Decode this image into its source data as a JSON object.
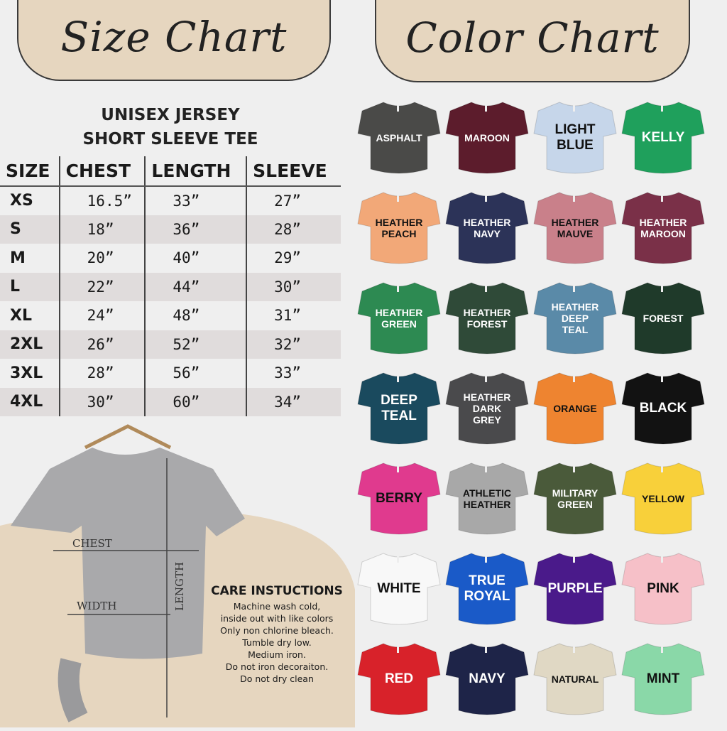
{
  "size_chart": {
    "title": "Size Chart",
    "subtitle_line1": "UNISEX JERSEY",
    "subtitle_line2": "SHORT SLEEVE TEE",
    "headers": [
      "SIZE",
      "CHEST",
      "LENGTH",
      "SLEEVE"
    ],
    "rows": [
      [
        "XS",
        "16.5”",
        "33”",
        "27”"
      ],
      [
        "S",
        "18”",
        "36”",
        "28”"
      ],
      [
        "M",
        "20”",
        "40”",
        "29”"
      ],
      [
        "L",
        "22”",
        "44”",
        "30”"
      ],
      [
        "XL",
        "24”",
        "48”",
        "31”"
      ],
      [
        "2XL",
        "26”",
        "52”",
        "32”"
      ],
      [
        "3XL",
        "28”",
        "56”",
        "33”"
      ],
      [
        "4XL",
        "30”",
        "60”",
        "34”"
      ]
    ]
  },
  "diagram": {
    "chest": "CHEST",
    "width": "WIDTH",
    "length": "LENGTH"
  },
  "care": {
    "title": "CARE INSTUCTIONS",
    "lines": [
      "Machine wash cold,",
      "inside out with like colors",
      "Only non chlorine bleach.",
      "Tumble dry low.",
      "Medium iron.",
      "Do not iron decoraiton.",
      "Do not dry clean"
    ]
  },
  "color_chart": {
    "title": "Color Chart",
    "colors": [
      {
        "label": "ASPHALT",
        "hex": "#4a4a48",
        "text": "#ffffff",
        "big": false
      },
      {
        "label": "MAROON",
        "hex": "#5c1c2c",
        "text": "#ffffff",
        "big": false
      },
      {
        "label": "LIGHT\nBLUE",
        "hex": "#c6d6ea",
        "text": "#111111",
        "big": true
      },
      {
        "label": "KELLY",
        "hex": "#1fa05c",
        "text": "#ffffff",
        "big": true
      },
      {
        "label": "HEATHER\nPEACH",
        "hex": "#f2a878",
        "text": "#111111",
        "big": false
      },
      {
        "label": "HEATHER\nNAVY",
        "hex": "#2c3358",
        "text": "#ffffff",
        "big": false
      },
      {
        "label": "HEATHER\nMAUVE",
        "hex": "#c9808a",
        "text": "#111111",
        "big": false
      },
      {
        "label": "HEATHER\nMAROON",
        "hex": "#7a3048",
        "text": "#ffffff",
        "big": false
      },
      {
        "label": "HEATHER\nGREEN",
        "hex": "#2d8a52",
        "text": "#ffffff",
        "big": false
      },
      {
        "label": "HEATHER\nFOREST",
        "hex": "#2f4a38",
        "text": "#ffffff",
        "big": false
      },
      {
        "label": "HEATHER\nDEEP\nTEAL",
        "hex": "#5a8aa8",
        "text": "#ffffff",
        "big": false
      },
      {
        "label": "FOREST",
        "hex": "#1f3a2a",
        "text": "#ffffff",
        "big": false
      },
      {
        "label": "DEEP\nTEAL",
        "hex": "#1a4a5e",
        "text": "#ffffff",
        "big": true
      },
      {
        "label": "HEATHER\nDARK\nGREY",
        "hex": "#4a4a4c",
        "text": "#ffffff",
        "big": false
      },
      {
        "label": "ORANGE",
        "hex": "#ee8430",
        "text": "#111111",
        "big": false
      },
      {
        "label": "BLACK",
        "hex": "#121212",
        "text": "#ffffff",
        "big": true
      },
      {
        "label": "BERRY",
        "hex": "#e03a8e",
        "text": "#111111",
        "big": true
      },
      {
        "label": "ATHLETIC\nHEATHER",
        "hex": "#a8a8a8",
        "text": "#111111",
        "big": false
      },
      {
        "label": "MILITARY\nGREEN",
        "hex": "#4a5a3a",
        "text": "#ffffff",
        "big": false
      },
      {
        "label": "YELLOW",
        "hex": "#f8d03a",
        "text": "#111111",
        "big": false
      },
      {
        "label": "WHITE",
        "hex": "#f8f8f8",
        "text": "#111111",
        "big": true
      },
      {
        "label": "TRUE\nROYAL",
        "hex": "#1a5ac8",
        "text": "#ffffff",
        "big": true
      },
      {
        "label": "PURPLE",
        "hex": "#4a1a8a",
        "text": "#ffffff",
        "big": true
      },
      {
        "label": "PINK",
        "hex": "#f6c0c8",
        "text": "#111111",
        "big": true
      },
      {
        "label": "RED",
        "hex": "#d8222a",
        "text": "#ffffff",
        "big": true
      },
      {
        "label": "NAVY",
        "hex": "#1e2448",
        "text": "#ffffff",
        "big": true
      },
      {
        "label": "NATURAL",
        "hex": "#e0d8c4",
        "text": "#111111",
        "big": false
      },
      {
        "label": "MINT",
        "hex": "#8ad8a8",
        "text": "#111111",
        "big": true
      }
    ]
  }
}
